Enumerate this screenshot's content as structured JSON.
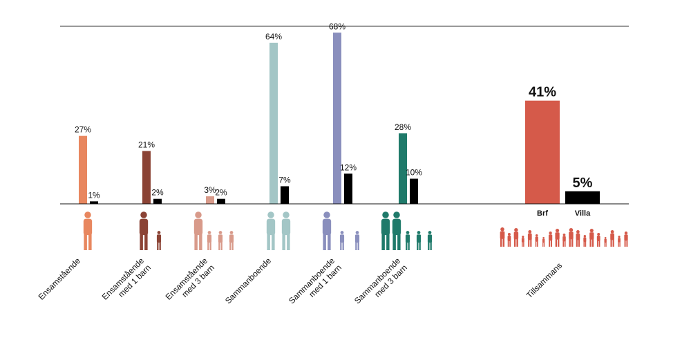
{
  "chart_data": {
    "type": "bar",
    "categories": [
      [
        "Ensamstående"
      ],
      [
        "Ensamstående",
        "med 1 barn"
      ],
      [
        "Ensamstående",
        "med 3 barn"
      ],
      [
        "Sammanboende"
      ],
      [
        "Sammanboende",
        "med 1 barn"
      ],
      [
        "Sammanboende",
        "med 3 barn"
      ],
      [
        "Tillsammans"
      ]
    ],
    "series": [
      {
        "name": "Brf",
        "values": [
          27,
          21,
          3,
          64,
          68,
          28,
          41
        ],
        "labels": [
          "27%",
          "21%",
          "3%",
          "64%",
          "68%",
          "28%",
          "41%"
        ]
      },
      {
        "name": "Villa",
        "values": [
          1,
          2,
          2,
          7,
          12,
          10,
          5
        ],
        "labels": [
          "1%",
          "2%",
          "2%",
          "7%",
          "12%",
          "10%",
          "5%"
        ]
      }
    ],
    "category_colors": [
      "#e8875f",
      "#8b4335",
      "#d89a8a",
      "#a3c6c6",
      "#8a8fbd",
      "#1f7a6a",
      "#d55a4a"
    ],
    "villa_color": "#000000",
    "people_icon_counts": [
      1,
      2,
      4,
      2,
      3,
      5,
      19
    ],
    "ylim": [
      0,
      70
    ],
    "legend": "below-bars"
  }
}
